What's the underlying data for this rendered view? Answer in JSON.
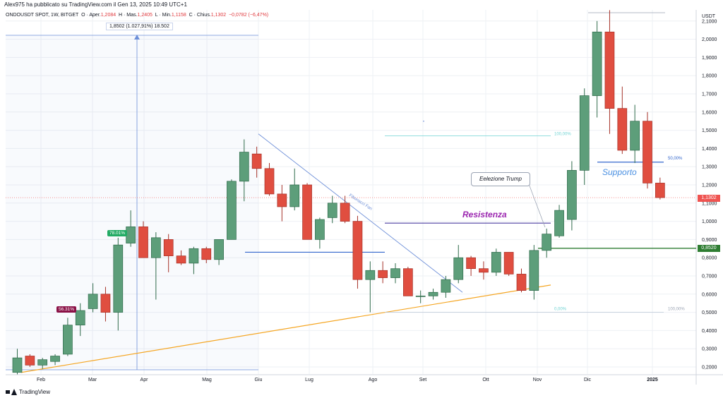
{
  "header": {
    "published": "Alex975 ha pubblicato su TradingView.com il Gen 13, 2025 10:49 UTC+1",
    "symbol": "ONDOUSDT SPOT, 1W, BITGET",
    "open_label": "O · Aper.",
    "open": "1,2084",
    "high_label": "H · Mas.",
    "high": "1,2405",
    "low_label": "L · Min.",
    "low": "1,1158",
    "close_label": "C · Chius.",
    "close": "1,1302",
    "change": "−0,0782 (−6,47%)"
  },
  "footer": {
    "brand": "TradingView"
  },
  "measure_label": "1,8502 (1.027,91%) 18.502",
  "tags": {
    "green": "78.01%",
    "maroon": "56.31%"
  },
  "annotations": {
    "trump": "Eelezione Trump",
    "resistenza": "Resistenza",
    "supporto": "Supporto",
    "fib_fan": "Fibonacci Fan",
    "fib_100_top": "100,00%",
    "fib_0": "0,00%",
    "fib_100_right": "100,00%",
    "fib_50": "50,00%",
    "fib_50_short": "50"
  },
  "price_axis": {
    "currency": "USDT",
    "current": "1,1302",
    "marker": "0,8520",
    "ticks": [
      "2,1000",
      "2,0000",
      "1,9000",
      "1,8000",
      "1,7000",
      "1,6000",
      "1,5000",
      "1,4000",
      "1,3000",
      "1,2000",
      "1,1000",
      "1,0000",
      "0,9000",
      "0,8000",
      "0,7000",
      "0,6000",
      "0,5000",
      "0,4000",
      "0,3000",
      "0,2000"
    ]
  },
  "time_axis": [
    "Feb",
    "Mar",
    "Apr",
    "Mag",
    "Giu",
    "Lug",
    "Ago",
    "Set",
    "Ott",
    "Nov",
    "Dic",
    "2025"
  ],
  "colors": {
    "up": "#5d9e7a",
    "down": "#e04e40",
    "up_border": "#2f6b4b",
    "down_border": "#a53128",
    "grid": "#eef0f4",
    "trend": "#f5a623",
    "fan": "#6d8fd8",
    "support": "#3366cc",
    "resist": "#4b3ea0",
    "green_level": "#2e7d32",
    "fib": "#6fd3d3"
  },
  "chart_data": {
    "type": "candlestick",
    "title": "ONDOUSDT SPOT, 1W, BITGET",
    "xlabel": "",
    "ylabel": "USDT",
    "ylim": [
      0.15,
      2.15
    ],
    "x_ticks": [
      "Feb",
      "Mar",
      "Apr",
      "Mag",
      "Giu",
      "Lug",
      "Ago",
      "Set",
      "Ott",
      "Nov",
      "Dic",
      "2025"
    ],
    "candles": [
      {
        "o": 0.17,
        "h": 0.3,
        "l": 0.16,
        "c": 0.25
      },
      {
        "o": 0.26,
        "h": 0.27,
        "l": 0.2,
        "c": 0.21
      },
      {
        "o": 0.21,
        "h": 0.25,
        "l": 0.19,
        "c": 0.24
      },
      {
        "o": 0.23,
        "h": 0.27,
        "l": 0.21,
        "c": 0.26
      },
      {
        "o": 0.27,
        "h": 0.47,
        "l": 0.26,
        "c": 0.43
      },
      {
        "o": 0.43,
        "h": 0.55,
        "l": 0.37,
        "c": 0.51
      },
      {
        "o": 0.52,
        "h": 0.66,
        "l": 0.5,
        "c": 0.6
      },
      {
        "o": 0.6,
        "h": 0.64,
        "l": 0.45,
        "c": 0.5
      },
      {
        "o": 0.5,
        "h": 0.91,
        "l": 0.4,
        "c": 0.87
      },
      {
        "o": 0.88,
        "h": 1.06,
        "l": 0.86,
        "c": 0.97
      },
      {
        "o": 0.97,
        "h": 1.0,
        "l": 0.8,
        "c": 0.8
      },
      {
        "o": 0.8,
        "h": 0.94,
        "l": 0.57,
        "c": 0.91
      },
      {
        "o": 0.9,
        "h": 0.93,
        "l": 0.72,
        "c": 0.81
      },
      {
        "o": 0.81,
        "h": 0.84,
        "l": 0.76,
        "c": 0.77
      },
      {
        "o": 0.77,
        "h": 0.86,
        "l": 0.71,
        "c": 0.85
      },
      {
        "o": 0.85,
        "h": 0.86,
        "l": 0.77,
        "c": 0.79
      },
      {
        "o": 0.79,
        "h": 0.9,
        "l": 0.76,
        "c": 0.9
      },
      {
        "o": 0.9,
        "h": 1.23,
        "l": 0.9,
        "c": 1.22
      },
      {
        "o": 1.22,
        "h": 1.45,
        "l": 1.11,
        "c": 1.38
      },
      {
        "o": 1.37,
        "h": 1.41,
        "l": 1.24,
        "c": 1.29
      },
      {
        "o": 1.29,
        "h": 1.32,
        "l": 1.14,
        "c": 1.15
      },
      {
        "o": 1.15,
        "h": 1.2,
        "l": 1.0,
        "c": 1.08
      },
      {
        "o": 1.08,
        "h": 1.29,
        "l": 1.06,
        "c": 1.2
      },
      {
        "o": 1.2,
        "h": 1.21,
        "l": 0.9,
        "c": 0.9
      },
      {
        "o": 0.9,
        "h": 1.02,
        "l": 0.85,
        "c": 1.01
      },
      {
        "o": 1.02,
        "h": 1.14,
        "l": 0.99,
        "c": 1.1
      },
      {
        "o": 1.1,
        "h": 1.14,
        "l": 0.99,
        "c": 1.0
      },
      {
        "o": 1.0,
        "h": 1.03,
        "l": 0.63,
        "c": 0.68
      },
      {
        "o": 0.68,
        "h": 0.78,
        "l": 0.5,
        "c": 0.73
      },
      {
        "o": 0.73,
        "h": 0.78,
        "l": 0.66,
        "c": 0.69
      },
      {
        "o": 0.69,
        "h": 0.77,
        "l": 0.66,
        "c": 0.74
      },
      {
        "o": 0.74,
        "h": 0.75,
        "l": 0.59,
        "c": 0.59
      },
      {
        "o": 0.59,
        "h": 0.62,
        "l": 0.55,
        "c": 0.59
      },
      {
        "o": 0.59,
        "h": 0.63,
        "l": 0.57,
        "c": 0.61
      },
      {
        "o": 0.61,
        "h": 0.7,
        "l": 0.58,
        "c": 0.68
      },
      {
        "o": 0.68,
        "h": 0.87,
        "l": 0.66,
        "c": 0.8
      },
      {
        "o": 0.8,
        "h": 0.81,
        "l": 0.7,
        "c": 0.74
      },
      {
        "o": 0.74,
        "h": 0.78,
        "l": 0.68,
        "c": 0.72
      },
      {
        "o": 0.72,
        "h": 0.85,
        "l": 0.7,
        "c": 0.83
      },
      {
        "o": 0.83,
        "h": 0.83,
        "l": 0.7,
        "c": 0.71
      },
      {
        "o": 0.71,
        "h": 0.74,
        "l": 0.61,
        "c": 0.62
      },
      {
        "o": 0.62,
        "h": 0.87,
        "l": 0.57,
        "c": 0.84
      },
      {
        "o": 0.84,
        "h": 0.96,
        "l": 0.8,
        "c": 0.93
      },
      {
        "o": 0.92,
        "h": 1.09,
        "l": 0.91,
        "c": 1.06
      },
      {
        "o": 1.01,
        "h": 1.33,
        "l": 0.95,
        "c": 1.28
      },
      {
        "o": 1.28,
        "h": 1.73,
        "l": 1.2,
        "c": 1.69
      },
      {
        "o": 1.69,
        "h": 2.1,
        "l": 1.57,
        "c": 2.04
      },
      {
        "o": 2.04,
        "h": 2.16,
        "l": 1.48,
        "c": 1.62
      },
      {
        "o": 1.62,
        "h": 1.74,
        "l": 1.37,
        "c": 1.39
      },
      {
        "o": 1.39,
        "h": 1.64,
        "l": 1.32,
        "c": 1.55
      },
      {
        "o": 1.55,
        "h": 1.6,
        "l": 1.18,
        "c": 1.21
      },
      {
        "o": 1.21,
        "h": 1.24,
        "l": 1.12,
        "c": 1.13
      }
    ],
    "levels": {
      "resistenza": 0.99,
      "supporto": 1.325,
      "marker": 0.852
    }
  }
}
